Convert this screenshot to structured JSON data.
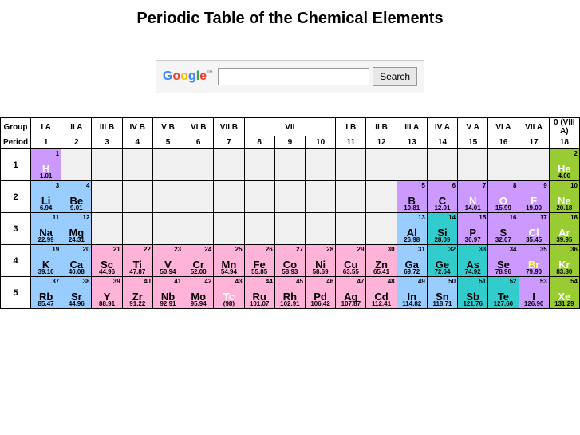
{
  "title": "Periodic Table of the Chemical Elements",
  "search": {
    "button": "Search",
    "placeholder": ""
  },
  "headers": {
    "group_label": "Group",
    "period_label": "Period",
    "roman": [
      "I A",
      "II A",
      "III B",
      "IV B",
      "V B",
      "VI B",
      "VII B",
      "VII",
      "I B",
      "II B",
      "III A",
      "IV A",
      "V A",
      "VI A",
      "VII A",
      "0 (VIII A)"
    ],
    "numbers": [
      "1",
      "2",
      "3",
      "4",
      "5",
      "6",
      "7",
      "8",
      "9",
      "10",
      "11",
      "12",
      "13",
      "14",
      "15",
      "16",
      "17",
      "18"
    ]
  },
  "colors": {
    "blue": "#99ccff",
    "pink": "#ffb3d9",
    "purple": "#cc99ff",
    "teal": "#33cccc",
    "green": "#99cc33",
    "empty": "#f0f0f0",
    "white_sym": "#ffffff",
    "yellow_sym": "#ffff66"
  },
  "elements": {
    "H": {
      "n": "1",
      "s": "H",
      "m": "1.01",
      "c": "purple",
      "sc": "white"
    },
    "He": {
      "n": "2",
      "s": "He",
      "m": "4.00",
      "c": "green",
      "sc": "white"
    },
    "Li": {
      "n": "3",
      "s": "Li",
      "m": "6.94",
      "c": "blue"
    },
    "Be": {
      "n": "4",
      "s": "Be",
      "m": "9.01",
      "c": "blue"
    },
    "B": {
      "n": "5",
      "s": "B",
      "m": "10.81",
      "c": "purple"
    },
    "C": {
      "n": "6",
      "s": "C",
      "m": "12.01",
      "c": "purple"
    },
    "N": {
      "n": "7",
      "s": "N",
      "m": "14.01",
      "c": "purple",
      "sc": "white"
    },
    "O": {
      "n": "8",
      "s": "O",
      "m": "15.99",
      "c": "purple",
      "sc": "white"
    },
    "F": {
      "n": "9",
      "s": "F",
      "m": "19.00",
      "c": "purple",
      "sc": "white"
    },
    "Ne": {
      "n": "10",
      "s": "Ne",
      "m": "20.18",
      "c": "green",
      "sc": "white"
    },
    "Na": {
      "n": "11",
      "s": "Na",
      "m": "22.99",
      "c": "blue"
    },
    "Mg": {
      "n": "12",
      "s": "Mg",
      "m": "24.31",
      "c": "blue"
    },
    "Al": {
      "n": "13",
      "s": "Al",
      "m": "26.98",
      "c": "blue"
    },
    "Si": {
      "n": "14",
      "s": "Si",
      "m": "28.09",
      "c": "teal"
    },
    "P": {
      "n": "15",
      "s": "P",
      "m": "30.97",
      "c": "purple"
    },
    "S": {
      "n": "16",
      "s": "S",
      "m": "32.07",
      "c": "purple"
    },
    "Cl": {
      "n": "17",
      "s": "Cl",
      "m": "35.45",
      "c": "purple",
      "sc": "white"
    },
    "Ar": {
      "n": "18",
      "s": "Ar",
      "m": "39.95",
      "c": "green",
      "sc": "white"
    },
    "K": {
      "n": "19",
      "s": "K",
      "m": "39.10",
      "c": "blue"
    },
    "Ca": {
      "n": "20",
      "s": "Ca",
      "m": "40.08",
      "c": "blue"
    },
    "Sc": {
      "n": "21",
      "s": "Sc",
      "m": "44.96",
      "c": "pink"
    },
    "Ti": {
      "n": "22",
      "s": "Ti",
      "m": "47.87",
      "c": "pink"
    },
    "V": {
      "n": "23",
      "s": "V",
      "m": "50.94",
      "c": "pink"
    },
    "Cr": {
      "n": "24",
      "s": "Cr",
      "m": "52.00",
      "c": "pink"
    },
    "Mn": {
      "n": "25",
      "s": "Mn",
      "m": "54.94",
      "c": "pink"
    },
    "Fe": {
      "n": "26",
      "s": "Fe",
      "m": "55.85",
      "c": "pink"
    },
    "Co": {
      "n": "27",
      "s": "Co",
      "m": "58.93",
      "c": "pink"
    },
    "Ni": {
      "n": "28",
      "s": "Ni",
      "m": "58.69",
      "c": "pink"
    },
    "Cu": {
      "n": "29",
      "s": "Cu",
      "m": "63.55",
      "c": "pink"
    },
    "Zn": {
      "n": "30",
      "s": "Zn",
      "m": "65.41",
      "c": "pink"
    },
    "Ga": {
      "n": "31",
      "s": "Ga",
      "m": "69.72",
      "c": "blue"
    },
    "Ge": {
      "n": "32",
      "s": "Ge",
      "m": "72.64",
      "c": "teal"
    },
    "As": {
      "n": "33",
      "s": "As",
      "m": "74.92",
      "c": "teal"
    },
    "Se": {
      "n": "34",
      "s": "Se",
      "m": "78.96",
      "c": "purple"
    },
    "Br": {
      "n": "35",
      "s": "Br",
      "m": "79.90",
      "c": "purple",
      "sc": "yellow"
    },
    "Kr": {
      "n": "36",
      "s": "Kr",
      "m": "83.80",
      "c": "green",
      "sc": "white"
    },
    "Rb": {
      "n": "37",
      "s": "Rb",
      "m": "85.47",
      "c": "blue"
    },
    "Sr": {
      "n": "38",
      "s": "Sr",
      "m": "44.96",
      "c": "blue"
    },
    "Y": {
      "n": "39",
      "s": "Y",
      "m": "88.91",
      "c": "pink"
    },
    "Zr": {
      "n": "40",
      "s": "Zr",
      "m": "91.22",
      "c": "pink"
    },
    "Nb": {
      "n": "41",
      "s": "Nb",
      "m": "92.91",
      "c": "pink"
    },
    "Mo": {
      "n": "42",
      "s": "Mo",
      "m": "95.94",
      "c": "pink"
    },
    "Tc": {
      "n": "43",
      "s": "Tc",
      "m": "(98)",
      "c": "pink",
      "sc": "white"
    },
    "Ru": {
      "n": "44",
      "s": "Ru",
      "m": "101.07",
      "c": "pink"
    },
    "Rh": {
      "n": "45",
      "s": "Rh",
      "m": "102.91",
      "c": "pink"
    },
    "Pd": {
      "n": "46",
      "s": "Pd",
      "m": "106.42",
      "c": "pink"
    },
    "Ag": {
      "n": "47",
      "s": "Ag",
      "m": "107.87",
      "c": "pink"
    },
    "Cd": {
      "n": "48",
      "s": "Cd",
      "m": "112.41",
      "c": "pink"
    },
    "In": {
      "n": "49",
      "s": "In",
      "m": "114.82",
      "c": "blue"
    },
    "Sn": {
      "n": "50",
      "s": "Sn",
      "m": "118.71",
      "c": "blue"
    },
    "Sb": {
      "n": "51",
      "s": "Sb",
      "m": "121.76",
      "c": "teal"
    },
    "Te": {
      "n": "52",
      "s": "Te",
      "m": "127.60",
      "c": "teal"
    },
    "I": {
      "n": "53",
      "s": "I",
      "m": "126.90",
      "c": "purple"
    },
    "Xe": {
      "n": "54",
      "s": "Xe",
      "m": "131.29",
      "c": "green",
      "sc": "white"
    }
  },
  "periods": [
    {
      "p": "1",
      "cells": [
        "H",
        "",
        "",
        "",
        "",
        "",
        "",
        "",
        "",
        "",
        "",
        "",
        "",
        "",
        "",
        "",
        "",
        "He"
      ]
    },
    {
      "p": "2",
      "cells": [
        "Li",
        "Be",
        "",
        "",
        "",
        "",
        "",
        "",
        "",
        "",
        "",
        "",
        "B",
        "C",
        "N",
        "O",
        "F",
        "Ne"
      ]
    },
    {
      "p": "3",
      "cells": [
        "Na",
        "Mg",
        "",
        "",
        "",
        "",
        "",
        "",
        "",
        "",
        "",
        "",
        "Al",
        "Si",
        "P",
        "S",
        "Cl",
        "Ar"
      ]
    },
    {
      "p": "4",
      "cells": [
        "K",
        "Ca",
        "Sc",
        "Ti",
        "V",
        "Cr",
        "Mn",
        "Fe",
        "Co",
        "Ni",
        "Cu",
        "Zn",
        "Ga",
        "Ge",
        "As",
        "Se",
        "Br",
        "Kr"
      ]
    },
    {
      "p": "5",
      "cells": [
        "Rb",
        "Sr",
        "Y",
        "Zr",
        "Nb",
        "Mo",
        "Tc",
        "Ru",
        "Rh",
        "Pd",
        "Ag",
        "Cd",
        "In",
        "Sn",
        "Sb",
        "Te",
        "I",
        "Xe"
      ]
    }
  ]
}
